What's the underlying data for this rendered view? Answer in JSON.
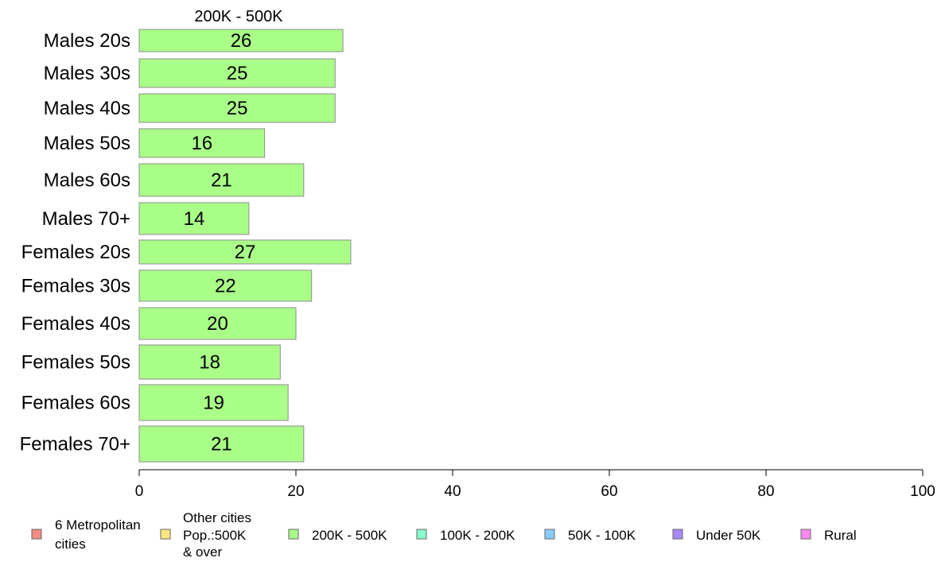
{
  "chart_data": {
    "type": "bar",
    "orientation": "horizontal",
    "title": "200K - 500K",
    "categories": [
      "Males 20s",
      "Males 30s",
      "Males 40s",
      "Males 50s",
      "Males 60s",
      "Males 70+",
      "Females 20s",
      "Females 30s",
      "Females 40s",
      "Females 50s",
      "Females 60s",
      "Females 70+"
    ],
    "values": [
      26,
      25,
      25,
      16,
      21,
      14,
      27,
      22,
      20,
      18,
      19,
      21
    ],
    "value_labels": [
      "26",
      "25",
      "25",
      "16",
      "21",
      "14",
      "27",
      "22",
      "20",
      "18",
      "19",
      "21"
    ],
    "bar_color": "#aaff88",
    "xlim": [
      0,
      100
    ],
    "xticks": [
      0,
      20,
      40,
      60,
      80,
      100
    ],
    "grid": false,
    "legend": {
      "placement": "bottom",
      "entries": [
        {
          "label": [
            "6 Metropolitan",
            " cities"
          ],
          "color": "#f28b82"
        },
        {
          "label": [
            "Other cities",
            "Pop.:500K",
            " & over"
          ],
          "color": "#ffe680"
        },
        {
          "label": [
            "200K - 500K"
          ],
          "color": "#aaff88"
        },
        {
          "label": [
            "100K - 200K"
          ],
          "color": "#88ffcc"
        },
        {
          "label": [
            "50K - 100K"
          ],
          "color": "#88ccff"
        },
        {
          "label": [
            "Under 50K"
          ],
          "color": "#aa88ff"
        },
        {
          "label": [
            "Rural"
          ],
          "color": "#ff88ee"
        }
      ]
    }
  }
}
